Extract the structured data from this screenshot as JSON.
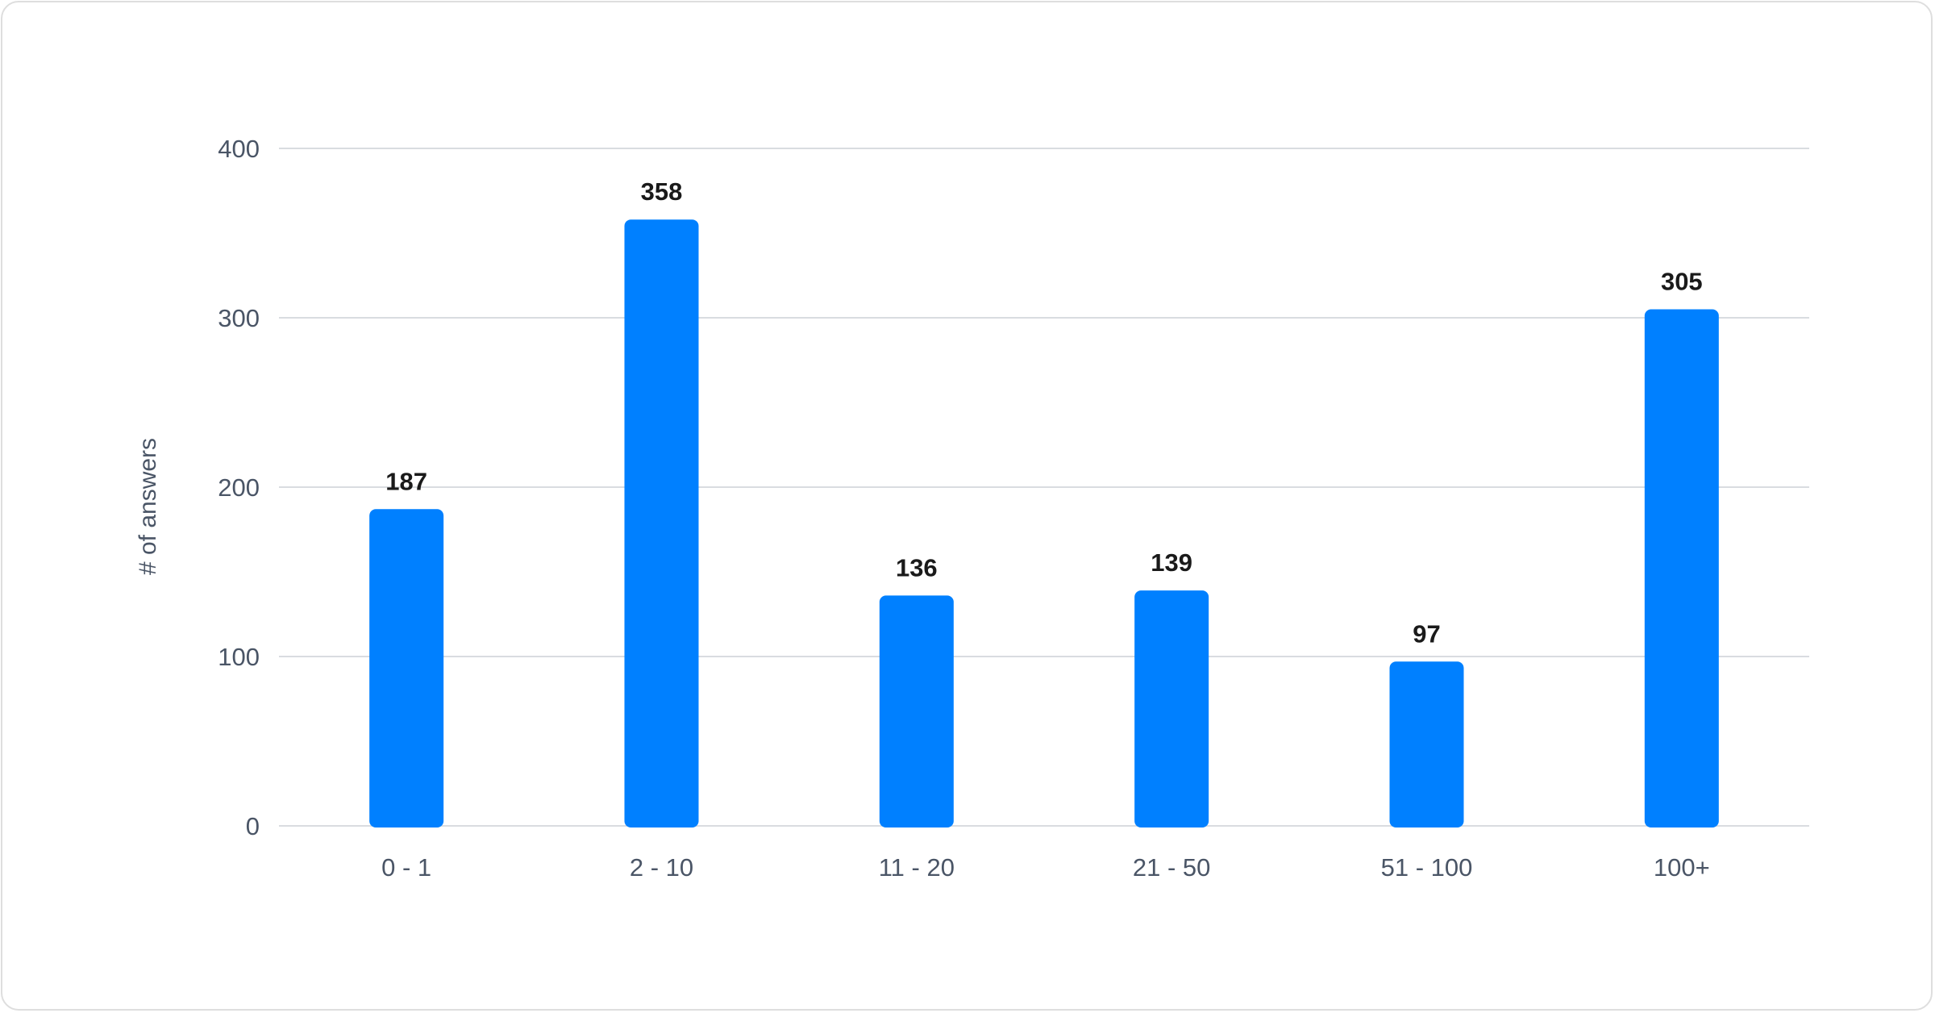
{
  "chart_data": {
    "type": "bar",
    "title": "",
    "xlabel": "",
    "ylabel": "# of answers",
    "categories": [
      "0 - 1",
      "2 - 10",
      "11 - 20",
      "21 - 50",
      "51 - 100",
      "100+"
    ],
    "values": [
      187,
      358,
      136,
      139,
      97,
      305
    ],
    "ylim": [
      0,
      400
    ],
    "yticks": [
      0,
      100,
      200,
      300,
      400
    ],
    "grid": true,
    "data_labels": true,
    "bar_color": "#0080ff",
    "label_color": "#1a1a1a",
    "tick_color": "#4a5566",
    "grid_color": "#d9dce0"
  }
}
